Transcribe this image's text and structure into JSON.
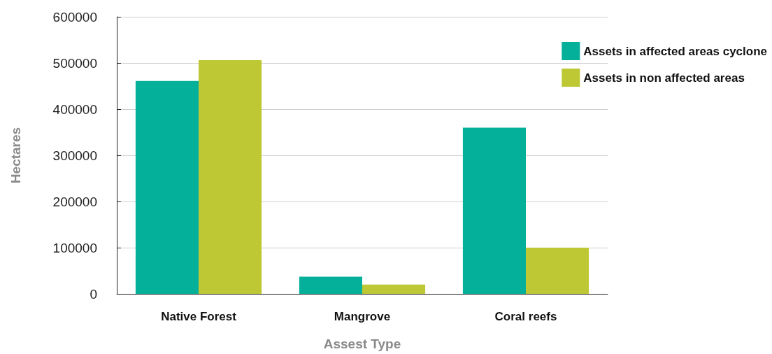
{
  "chart_data": {
    "type": "bar",
    "xlabel": "Assest Type",
    "ylabel": "Hectares",
    "categories": [
      "Native Forest",
      "Mangrove",
      "Coral reefs"
    ],
    "series": [
      {
        "name": "Assets in affected areas cyclone",
        "color": "#05b09a",
        "values": [
          461000,
          37000,
          360000
        ]
      },
      {
        "name": "Assets in non affected areas",
        "color": "#bec834",
        "values": [
          506000,
          20000,
          100000
        ]
      }
    ],
    "ylim": [
      0,
      600000
    ],
    "yticks": [
      0,
      100000,
      200000,
      300000,
      400000,
      500000,
      600000
    ],
    "grid": "y",
    "legend": "top right"
  }
}
